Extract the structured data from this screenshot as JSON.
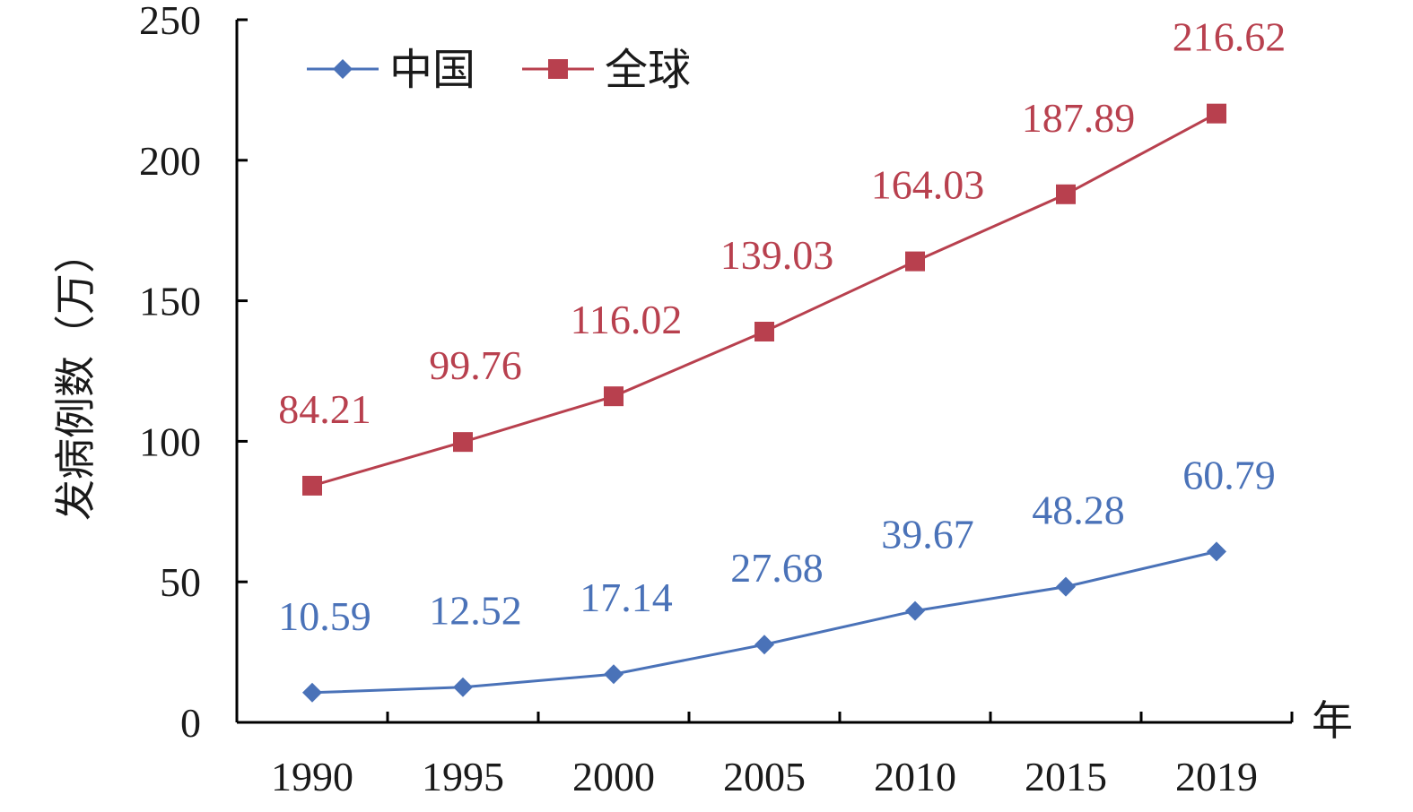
{
  "chart_data": {
    "type": "line",
    "categories": [
      "1990",
      "1995",
      "2000",
      "2005",
      "2010",
      "2015",
      "2019"
    ],
    "series": [
      {
        "name": "中国",
        "values": [
          10.59,
          12.52,
          17.14,
          27.68,
          39.67,
          48.28,
          60.79
        ],
        "labels": [
          "10.59",
          "12.52",
          "17.14",
          "27.68",
          "39.67",
          "48.28",
          "60.79"
        ],
        "color": "#4a72b8",
        "marker": "diamond"
      },
      {
        "name": "全球",
        "values": [
          84.21,
          99.76,
          116.02,
          139.03,
          164.03,
          187.89,
          216.62
        ],
        "labels": [
          "84.21",
          "99.76",
          "116.02",
          "139.03",
          "164.03",
          "187.89",
          "216.62"
        ],
        "color": "#b8404e",
        "marker": "square"
      }
    ],
    "xlabel": "年",
    "ylabel": "发病例数（万）",
    "ylim": [
      0,
      250
    ],
    "yticks": [
      "0",
      "50",
      "100",
      "150",
      "200",
      "250"
    ],
    "grid": false,
    "legend": "top-left"
  }
}
